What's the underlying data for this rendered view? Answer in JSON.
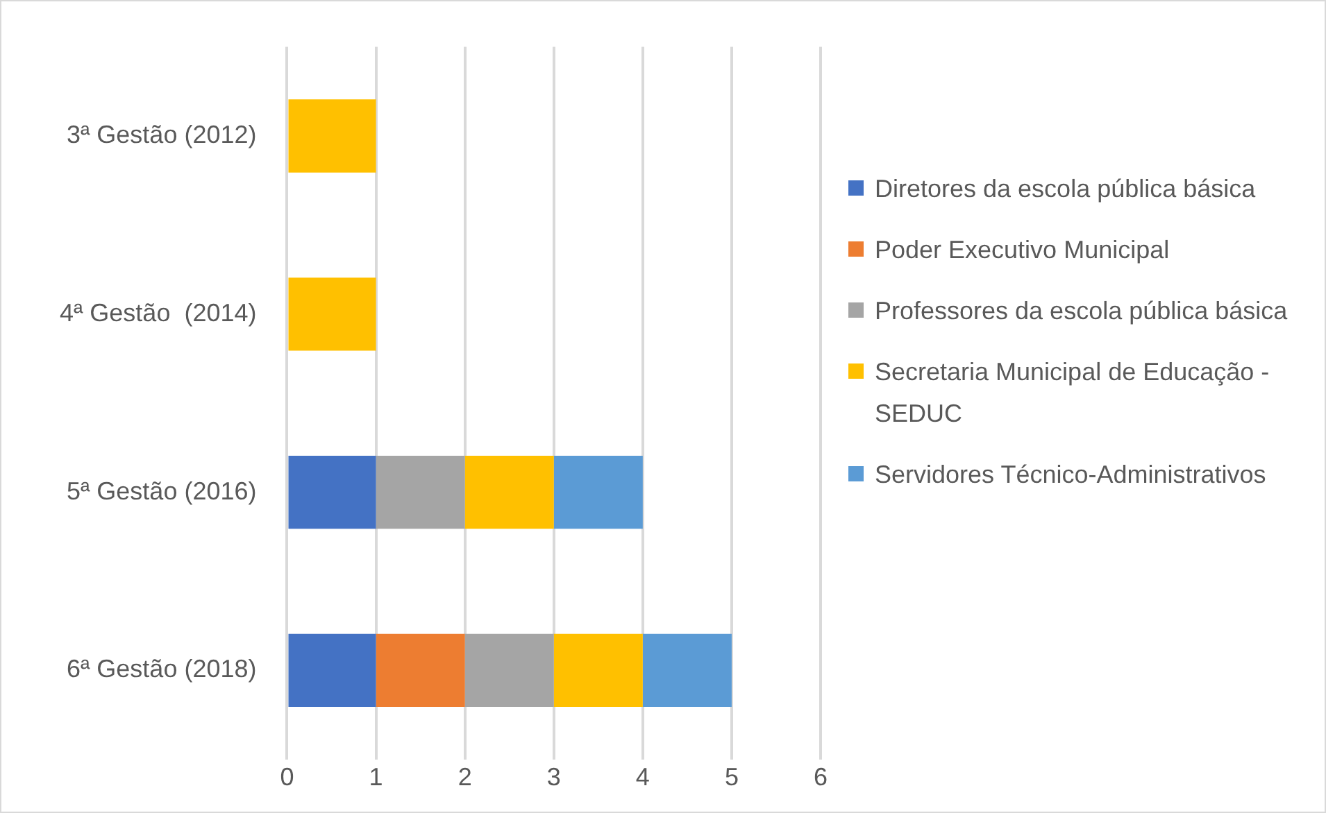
{
  "chart_data": {
    "type": "bar",
    "orientation": "horizontal",
    "stacked": true,
    "categories": [
      "3ª Gestão (2012)",
      "4ª Gestão  (2014)",
      "5ª Gestão (2016)",
      "6ª Gestão (2018)"
    ],
    "series": [
      {
        "name": "Diretores da escola pública básica",
        "color": "#4472c4",
        "values": [
          null,
          null,
          1,
          1
        ]
      },
      {
        "name": "Poder Executivo Municipal",
        "color": "#ed7d31",
        "values": [
          null,
          null,
          null,
          1
        ]
      },
      {
        "name": "Professores da escola pública básica",
        "color": "#a5a5a5",
        "values": [
          null,
          null,
          1,
          1
        ]
      },
      {
        "name": "Secretaria Municipal de Educação - SEDUC",
        "color": "#ffc000",
        "values": [
          1,
          1,
          1,
          1
        ]
      },
      {
        "name": "Servidores Técnico-Administrativos",
        "color": "#5b9bd5",
        "values": [
          null,
          null,
          1,
          1
        ]
      }
    ],
    "xlim": [
      0,
      6
    ],
    "xticks": [
      0,
      1,
      2,
      3,
      4,
      5,
      6
    ],
    "grid": "x",
    "legend": "right"
  }
}
